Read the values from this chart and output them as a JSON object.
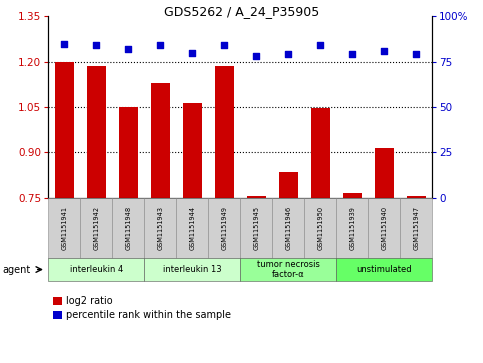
{
  "title": "GDS5262 / A_24_P35905",
  "samples": [
    "GSM1151941",
    "GSM1151942",
    "GSM1151948",
    "GSM1151943",
    "GSM1151944",
    "GSM1151949",
    "GSM1151945",
    "GSM1151946",
    "GSM1151950",
    "GSM1151939",
    "GSM1151940",
    "GSM1151947"
  ],
  "log2_ratio": [
    1.2,
    1.185,
    1.05,
    1.13,
    1.065,
    1.185,
    0.756,
    0.835,
    1.048,
    0.766,
    0.915,
    0.756
  ],
  "percentile_rank": [
    85,
    84,
    82,
    84,
    80,
    84,
    78,
    79,
    84,
    79,
    81,
    79
  ],
  "ylim_left": [
    0.75,
    1.35
  ],
  "ylim_right": [
    0,
    100
  ],
  "yticks_left": [
    0.75,
    0.9,
    1.05,
    1.2,
    1.35
  ],
  "yticks_right": [
    0,
    25,
    50,
    75,
    100
  ],
  "hlines": [
    1.2,
    1.05,
    0.9
  ],
  "bar_color": "#cc0000",
  "dot_color": "#0000cc",
  "bar_width": 0.6,
  "groups": [
    {
      "label": "interleukin 4",
      "start": 0,
      "end": 3,
      "color": "#ccffcc"
    },
    {
      "label": "interleukin 13",
      "start": 3,
      "end": 6,
      "color": "#ccffcc"
    },
    {
      "label": "tumor necrosis\nfactor-α",
      "start": 6,
      "end": 9,
      "color": "#99ff99"
    },
    {
      "label": "unstimulated",
      "start": 9,
      "end": 12,
      "color": "#66ff66"
    }
  ],
  "sample_box_color": "#d0d0d0",
  "sample_box_edge": "#888888",
  "legend_log2": "log2 ratio",
  "legend_pct": "percentile rank within the sample",
  "bar_color_r": "#cc0000",
  "dot_color_b": "#0000cc"
}
